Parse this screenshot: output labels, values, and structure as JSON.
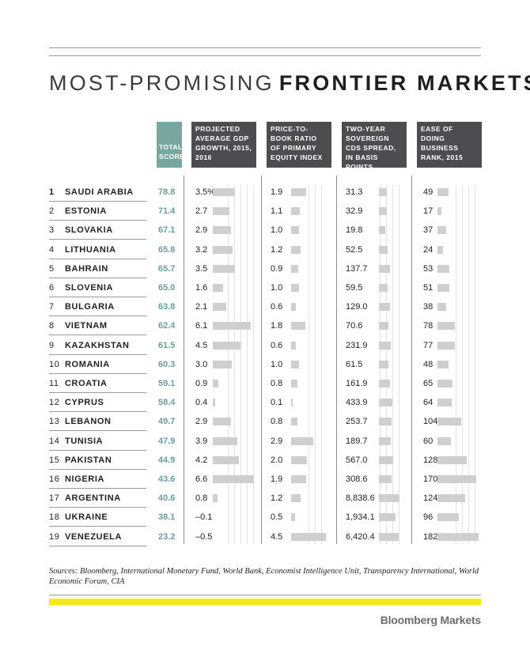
{
  "title": {
    "light": "MOST-PROMISING",
    "bold": "FRONTIER MARKETS"
  },
  "chart_data": {
    "type": "table",
    "columns": {
      "score": "TOTAL SCORE",
      "gdp": "PROJECTED AVERAGE GDP GROWTH, 2015, 2016",
      "pb": "PRICE-TO-BOOK RATIO OF PRIMARY EQUITY INDEX",
      "cds": "TWO-YEAR SOVEREIGN CDS SPREAD, IN BASIS POINTS",
      "ease": "EASE OF DOING BUSINESS RANK, 2015"
    },
    "rows": [
      {
        "rank": "1",
        "country": "SAUDI ARABIA",
        "score": "78.8",
        "gdp": "3.5%",
        "pb": "1.9",
        "cds": "31.3",
        "ease": "49"
      },
      {
        "rank": "2",
        "country": "ESTONIA",
        "score": "71.4",
        "gdp": "2.7",
        "pb": "1.1",
        "cds": "32.9",
        "ease": "17"
      },
      {
        "rank": "3",
        "country": "SLOVAKIA",
        "score": "67.1",
        "gdp": "2.9",
        "pb": "1.0",
        "cds": "19.8",
        "ease": "37"
      },
      {
        "rank": "4",
        "country": "LITHUANIA",
        "score": "65.8",
        "gdp": "3.2",
        "pb": "1.2",
        "cds": "52.5",
        "ease": "24"
      },
      {
        "rank": "5",
        "country": "BAHRAIN",
        "score": "65.7",
        "gdp": "3.5",
        "pb": "0.9",
        "cds": "137.7",
        "ease": "53"
      },
      {
        "rank": "6",
        "country": "SLOVENIA",
        "score": "65.0",
        "gdp": "1.6",
        "pb": "1.0",
        "cds": "59.5",
        "ease": "51"
      },
      {
        "rank": "7",
        "country": "BULGARIA",
        "score": "63.8",
        "gdp": "2.1",
        "pb": "0.6",
        "cds": "129.0",
        "ease": "38"
      },
      {
        "rank": "8",
        "country": "VIETNAM",
        "score": "62.4",
        "gdp": "6.1",
        "pb": "1.8",
        "cds": "70.6",
        "ease": "78"
      },
      {
        "rank": "9",
        "country": "KAZAKHSTAN",
        "score": "61.5",
        "gdp": "4.5",
        "pb": "0.6",
        "cds": "231.9",
        "ease": "77"
      },
      {
        "rank": "10",
        "country": "ROMANIA",
        "score": "60.3",
        "gdp": "3.0",
        "pb": "1.0",
        "cds": "61.5",
        "ease": "48"
      },
      {
        "rank": "11",
        "country": "CROATIA",
        "score": "59.1",
        "gdp": "0.9",
        "pb": "0.8",
        "cds": "161.9",
        "ease": "65"
      },
      {
        "rank": "12",
        "country": "CYPRUS",
        "score": "58.4",
        "gdp": "0.4",
        "pb": "0.1",
        "cds": "433.9",
        "ease": "64"
      },
      {
        "rank": "13",
        "country": "LEBANON",
        "score": "49.7",
        "gdp": "2.9",
        "pb": "0.8",
        "cds": "253.7",
        "ease": "104"
      },
      {
        "rank": "14",
        "country": "TUNISIA",
        "score": "47.9",
        "gdp": "3.9",
        "pb": "2.9",
        "cds": "189.7",
        "ease": "60"
      },
      {
        "rank": "15",
        "country": "PAKISTAN",
        "score": "44.9",
        "gdp": "4.2",
        "pb": "2.0",
        "cds": "567.0",
        "ease": "128"
      },
      {
        "rank": "16",
        "country": "NIGERIA",
        "score": "43.6",
        "gdp": "6.6",
        "pb": "1.9",
        "cds": "308.6",
        "ease": "170"
      },
      {
        "rank": "17",
        "country": "ARGENTINA",
        "score": "40.6",
        "gdp": "0.8",
        "pb": "1.2",
        "cds": "8,838.6",
        "ease": "124"
      },
      {
        "rank": "18",
        "country": "UKRAINE",
        "score": "38.1",
        "gdp": "–0.1",
        "pb": "0.5",
        "cds": "1,934.1",
        "ease": "96"
      },
      {
        "rank": "19",
        "country": "VENEZUELA",
        "score": "23.2",
        "gdp": "–0.5",
        "pb": "4.5",
        "cds": "6,420.4",
        "ease": "182"
      }
    ]
  },
  "sources": "Sources: Bloomberg, International Monetary Fund, World Bank, Economist Intelligence Unit, Transparency International, World Economic Forum, CIA",
  "brand": "Bloomberg Markets",
  "colors": {
    "score_header": "#7aa6a0",
    "score_text": "#6d9e97",
    "column_header": "#4d4d4f",
    "bar": "#cfcfcf",
    "accent_stripe": "#f7e71b"
  }
}
